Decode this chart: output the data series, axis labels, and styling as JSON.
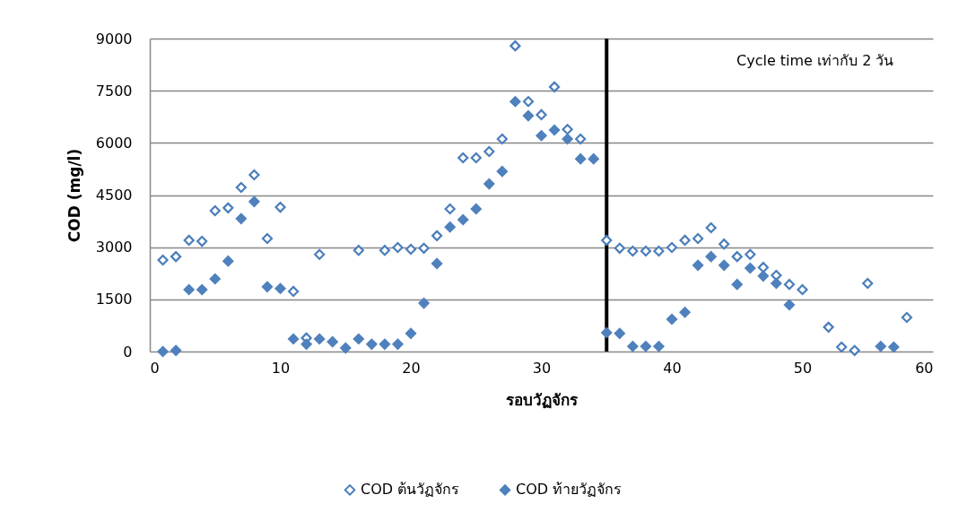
{
  "chart_data": {
    "type": "scatter",
    "xlabel": "รอบวัฏจักร",
    "ylabel": "COD (mg/l)",
    "xlim": [
      0,
      60
    ],
    "xticks": [
      0,
      10,
      20,
      30,
      40,
      50,
      60
    ],
    "ylim": [
      0,
      9000
    ],
    "yticks": [
      0,
      1500,
      3000,
      4500,
      6000,
      7500,
      9000
    ],
    "grid": "y",
    "legend": "bottom",
    "marker": "diamond",
    "annotations": [
      "Cycle time เท่ากับ 2 วัน"
    ],
    "ref_lines": [
      {
        "axis": "x",
        "value": 35,
        "color": "#000000"
      }
    ],
    "series": [
      {
        "name": "COD ต้นวัฏจักร",
        "color": "#4a7ebb",
        "x": [
          1,
          2,
          3,
          4,
          5,
          6,
          7,
          8,
          9,
          10,
          11,
          12,
          13,
          16,
          18,
          19,
          20,
          21,
          22,
          23,
          24,
          25,
          26,
          27,
          28,
          29,
          30,
          31,
          32,
          33,
          35,
          36,
          37,
          38,
          39,
          40,
          41,
          42,
          43,
          44,
          45,
          46,
          47,
          48,
          49,
          50,
          52,
          53,
          54,
          55,
          58
        ],
        "values": [
          2630,
          2730,
          3200,
          3170,
          4050,
          4130,
          4720,
          5080,
          3250,
          4150,
          1730,
          390,
          2790,
          2910,
          2910,
          2990,
          2940,
          2970,
          3330,
          4100,
          5570,
          5570,
          5750,
          6110,
          8790,
          7190,
          6810,
          7610,
          6390,
          6110,
          3200,
          2970,
          2890,
          2890,
          2890,
          2990,
          3200,
          3250,
          3560,
          3090,
          2730,
          2790,
          2420,
          2190,
          1930,
          1780,
          700,
          130,
          30,
          1960,
          980
        ]
      },
      {
        "name": "COD ท้ายวัฏจักร",
        "color": "#4f81bd",
        "x": [
          1,
          2,
          3,
          4,
          5,
          6,
          7,
          8,
          9,
          10,
          11,
          12,
          13,
          14,
          15,
          16,
          17,
          18,
          19,
          20,
          21,
          22,
          23,
          24,
          25,
          26,
          27,
          28,
          29,
          30,
          31,
          32,
          33,
          34,
          35,
          36,
          37,
          38,
          39,
          40,
          41,
          42,
          43,
          44,
          45,
          46,
          47,
          48,
          49,
          56,
          57
        ],
        "values": [
          0,
          30,
          1780,
          1780,
          2090,
          2600,
          3820,
          4310,
          1860,
          1810,
          360,
          210,
          360,
          280,
          100,
          360,
          210,
          210,
          210,
          520,
          1390,
          2530,
          3580,
          3790,
          4100,
          4820,
          5180,
          7190,
          6780,
          6210,
          6370,
          6110,
          5540,
          5540,
          540,
          520,
          150,
          150,
          150,
          930,
          1130,
          2480,
          2730,
          2480,
          1930,
          2400,
          2170,
          1960,
          1340,
          150,
          130
        ]
      }
    ]
  }
}
